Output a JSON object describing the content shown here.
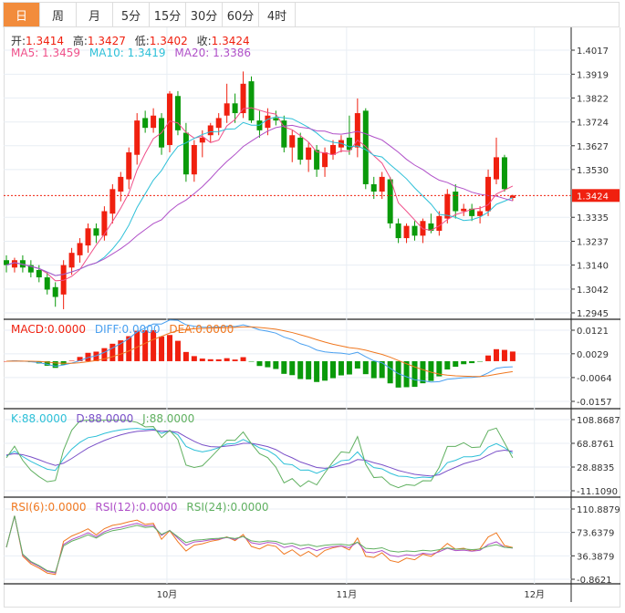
{
  "tabs": [
    {
      "label": "日",
      "active": true
    },
    {
      "label": "周"
    },
    {
      "label": "月"
    },
    {
      "label": "5分"
    },
    {
      "label": "15分"
    },
    {
      "label": "30分"
    },
    {
      "label": "60分"
    },
    {
      "label": "4时"
    }
  ],
  "legend": {
    "open_label": "开:",
    "open": "1.3414",
    "high_label": "高:",
    "high": "1.3427",
    "low_label": "低:",
    "low": "1.3402",
    "close_label": "收:",
    "close": "1.3424",
    "ma5": "MA5: 1.3459",
    "ma10": "MA10: 1.3419",
    "ma20": "MA20: 1.3386",
    "macd": "MACD:0.0000",
    "diff": "DIFF:0.0000",
    "dea": "DEA:0.0000",
    "k": "K:88.0000",
    "d": "D:88.0000",
    "j": "J:88.0000",
    "rsi6": "RSI(6):0.0000",
    "rsi12": "RSI(12):0.0000",
    "rsi24": "RSI(24):0.0000"
  },
  "colors": {
    "up": "#f0200f",
    "down": "#0a9a0a",
    "ma5": "#f0508a",
    "ma10": "#2ec0d8",
    "ma20": "#b050c8",
    "diff": "#4aa0f0",
    "dea": "#f07820",
    "k": "#2ec0d8",
    "d": "#7a50c8",
    "j": "#60b060",
    "rsi6": "#f07820",
    "rsi12": "#b050c8",
    "rsi24": "#60b060",
    "tab_active": "#f28c3c"
  },
  "current_price": "1.3424",
  "chart_data": {
    "type": "candlestick",
    "price_axis": [
      "1.4017",
      "1.3919",
      "1.3822",
      "1.3724",
      "1.3627",
      "1.3530",
      "1.3335",
      "1.3237",
      "1.3140",
      "1.3042",
      "1.2945"
    ],
    "price_range": [
      1.2945,
      1.4017
    ],
    "macd_axis": [
      "0.0121",
      "0.0029",
      "-0.0064",
      "-0.0157"
    ],
    "macd_range": [
      -0.0157,
      0.0121
    ],
    "kdj_axis": [
      "108.8687",
      "68.8761",
      "28.8835",
      "-11.1090"
    ],
    "kdj_range": [
      -11.109,
      108.8687
    ],
    "rsi_axis": [
      "110.8879",
      "73.6379",
      "36.3879",
      "-0.8621"
    ],
    "rsi_range": [
      -0.8621,
      110.8879
    ],
    "x_labels": [
      {
        "label": "10月",
        "index": 21
      },
      {
        "label": "11月",
        "index": 43
      },
      {
        "label": "12月",
        "index": 66
      }
    ],
    "ohlc": [
      [
        1.316,
        1.318,
        1.311,
        1.314
      ],
      [
        1.313,
        1.317,
        1.311,
        1.316
      ],
      [
        1.316,
        1.318,
        1.311,
        1.313
      ],
      [
        1.314,
        1.316,
        1.309,
        1.311
      ],
      [
        1.312,
        1.314,
        1.307,
        1.309
      ],
      [
        1.309,
        1.311,
        1.302,
        1.304
      ],
      [
        1.305,
        1.307,
        1.297,
        1.301
      ],
      [
        1.302,
        1.316,
        1.296,
        1.314
      ],
      [
        1.313,
        1.321,
        1.31,
        1.319
      ],
      [
        1.318,
        1.325,
        1.315,
        1.323
      ],
      [
        1.322,
        1.331,
        1.319,
        1.329
      ],
      [
        1.329,
        1.331,
        1.323,
        1.326
      ],
      [
        1.326,
        1.338,
        1.324,
        1.336
      ],
      [
        1.335,
        1.347,
        1.331,
        1.345
      ],
      [
        1.344,
        1.352,
        1.34,
        1.35
      ],
      [
        1.349,
        1.362,
        1.345,
        1.36
      ],
      [
        1.359,
        1.376,
        1.355,
        1.373
      ],
      [
        1.374,
        1.377,
        1.368,
        1.37
      ],
      [
        1.37,
        1.378,
        1.368,
        1.375
      ],
      [
        1.374,
        1.376,
        1.359,
        1.362
      ],
      [
        1.363,
        1.385,
        1.36,
        1.384
      ],
      [
        1.383,
        1.385,
        1.367,
        1.369
      ],
      [
        1.368,
        1.372,
        1.348,
        1.351
      ],
      [
        1.351,
        1.365,
        1.348,
        1.363
      ],
      [
        1.364,
        1.369,
        1.358,
        1.366
      ],
      [
        1.367,
        1.372,
        1.364,
        1.371
      ],
      [
        1.37,
        1.376,
        1.367,
        1.374
      ],
      [
        1.375,
        1.388,
        1.372,
        1.38
      ],
      [
        1.38,
        1.384,
        1.372,
        1.376
      ],
      [
        1.376,
        1.393,
        1.374,
        1.388
      ],
      [
        1.389,
        1.391,
        1.372,
        1.373
      ],
      [
        1.373,
        1.377,
        1.366,
        1.369
      ],
      [
        1.37,
        1.378,
        1.367,
        1.375
      ],
      [
        1.374,
        1.377,
        1.371,
        1.373
      ],
      [
        1.373,
        1.375,
        1.36,
        1.362
      ],
      [
        1.362,
        1.369,
        1.356,
        1.367
      ],
      [
        1.366,
        1.368,
        1.355,
        1.357
      ],
      [
        1.357,
        1.364,
        1.352,
        1.362
      ],
      [
        1.361,
        1.363,
        1.35,
        1.353
      ],
      [
        1.354,
        1.362,
        1.35,
        1.36
      ],
      [
        1.359,
        1.365,
        1.357,
        1.363
      ],
      [
        1.362,
        1.367,
        1.36,
        1.365
      ],
      [
        1.366,
        1.375,
        1.359,
        1.361
      ],
      [
        1.362,
        1.382,
        1.358,
        1.376
      ],
      [
        1.377,
        1.378,
        1.345,
        1.347
      ],
      [
        1.347,
        1.35,
        1.341,
        1.344
      ],
      [
        1.344,
        1.352,
        1.341,
        1.35
      ],
      [
        1.349,
        1.35,
        1.329,
        1.331
      ],
      [
        1.331,
        1.333,
        1.323,
        1.325
      ],
      [
        1.325,
        1.331,
        1.323,
        1.33
      ],
      [
        1.33,
        1.332,
        1.324,
        1.326
      ],
      [
        1.326,
        1.333,
        1.323,
        1.332
      ],
      [
        1.331,
        1.335,
        1.327,
        1.328
      ],
      [
        1.328,
        1.336,
        1.326,
        1.334
      ],
      [
        1.333,
        1.345,
        1.331,
        1.343
      ],
      [
        1.344,
        1.347,
        1.333,
        1.336
      ],
      [
        1.336,
        1.339,
        1.334,
        1.337
      ],
      [
        1.337,
        1.339,
        1.332,
        1.334
      ],
      [
        1.334,
        1.338,
        1.331,
        1.336
      ],
      [
        1.336,
        1.353,
        1.334,
        1.35
      ],
      [
        1.349,
        1.366,
        1.347,
        1.358
      ],
      [
        1.358,
        1.359,
        1.344,
        1.345
      ],
      [
        1.3414,
        1.3427,
        1.3402,
        1.3424
      ]
    ]
  }
}
